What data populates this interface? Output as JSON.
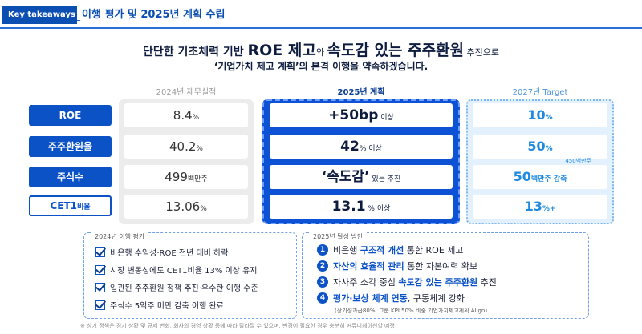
{
  "header": {
    "tag": "Key takeaways",
    "dash": "_",
    "title": "이행 평가 및 2025년 계획 수립"
  },
  "headline": {
    "pre": "단단한 기초체력 기반 ",
    "roe": "ROE 제고",
    "wa": "와 ",
    "speed": "속도감 있는 주주환원",
    "post": " 추진으로",
    "sub": "‘기업가치 제고 계획’의 본격 이행을 약속하겠습니다."
  },
  "columns": {
    "c2024": "2024년 재무실적",
    "c2025": "2025년 계획",
    "c2027": "2027년 Target"
  },
  "rows": [
    {
      "label": "ROE",
      "label_small": "",
      "v2024": "8.4",
      "u2024": "%",
      "v2025": "+50bp",
      "u2025": " 이상",
      "v2027": "10",
      "u2027": "%",
      "note2027": ""
    },
    {
      "label": "주주환원율",
      "label_small": "",
      "v2024": "40.2",
      "u2024": "%",
      "v2025": "42",
      "u2025": "% 이상",
      "v2027": "50",
      "u2027": "%",
      "note2027": ""
    },
    {
      "label": "주식수",
      "label_small": "",
      "v2024": "499",
      "u2024": "백만주",
      "v2025": "‘속도감’",
      "u2025": " 있는 추진",
      "v2027": "50",
      "u2027": "백만주 감축",
      "note2027": "450백만주"
    },
    {
      "label": "CET1",
      "label_small": "비율",
      "v2024": "13.06",
      "u2024": "%",
      "v2025": "13.1",
      "u2025": " % 이상",
      "v2027": "13",
      "u2027": "%+",
      "note2027": ""
    }
  ],
  "evaluation": {
    "title": "2024년 이행 평가",
    "items": [
      "비은행 수익성·ROE 전년 대비 하락",
      "시장 변동성에도 CET1비율 13% 이상 유지",
      "일관된 주주환원 정책 추진·우수한 이행 수준",
      "주식수 5억주 미만 감축 이행 완료"
    ]
  },
  "plan": {
    "title": "2025년 달성 방안",
    "items": [
      {
        "num": "1",
        "pre": "비은행 ",
        "hl": "구조적 개선",
        "post": " 통한 ROE 제고"
      },
      {
        "num": "2",
        "pre": "",
        "hl": "자산의 효율적 관리",
        "post": " 통한 자본여력 확보"
      },
      {
        "num": "3",
        "pre": "자사주 소각 중심 ",
        "hl": "속도감 있는 주주환원",
        "post": " 추진"
      },
      {
        "num": "4",
        "pre": "",
        "hl": "평가·보상 체계 연동",
        "post": ", 구동체계 강화"
      }
    ],
    "note": "(장기성과급80%, 그룹 KPI 50% 비중 기업가치제고계획 Align)"
  },
  "footnote": "※ 상기 정책은 경기 상황 및 규제 변화, 회사의 경영 상황 등에 따라 달라질 수 있으며, 변경이 필요한 경우 충분히 커뮤니케이션할 예정",
  "colors": {
    "brand_blue": "#0b52c7",
    "light_blue": "#1f8ae0",
    "gray": "#ececec"
  }
}
